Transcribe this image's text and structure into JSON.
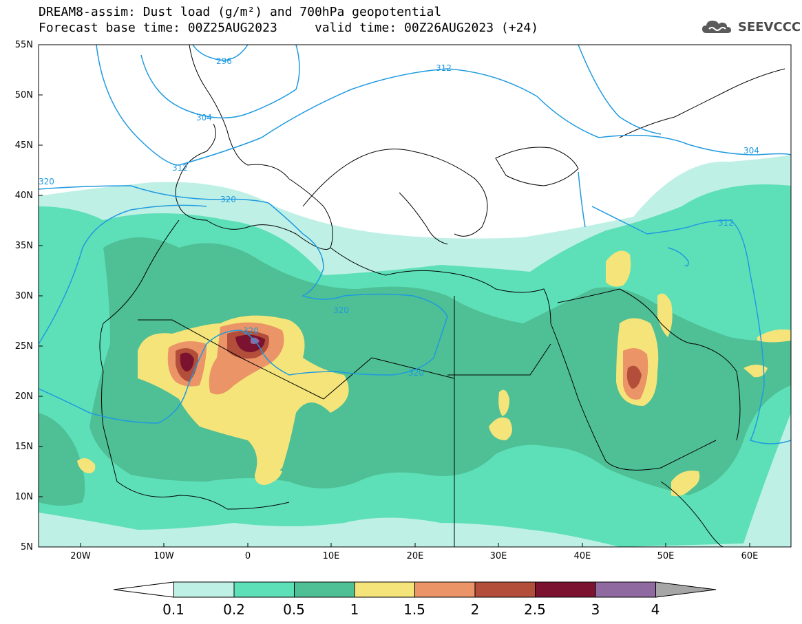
{
  "title": {
    "line1": "DREAM8-assim: Dust load (g/m²) and 700hPa geopotential",
    "line2": "Forecast base time: 00Z25AUG2023     valid time: 00Z26AUG2023 (+24)"
  },
  "logo": {
    "text": "SEEVCCC",
    "icon": "cloud-icon"
  },
  "map": {
    "lat_labels": [
      "55N",
      "50N",
      "45N",
      "40N",
      "35N",
      "30N",
      "25N",
      "20N",
      "15N",
      "10N",
      "5N"
    ],
    "lon_labels": [
      "20W",
      "10W",
      "0",
      "10E",
      "20E",
      "30E",
      "40E",
      "50E",
      "60E"
    ],
    "contour_labels": [
      "296",
      "304",
      "312",
      "320",
      "312",
      "304",
      "312",
      "320",
      "320",
      "320",
      "320"
    ],
    "extent": {
      "lon": [
        -25,
        65
      ],
      "lat": [
        5,
        55
      ]
    }
  },
  "colorbar": {
    "labels": [
      "0.1",
      "0.2",
      "0.5",
      "1",
      "1.5",
      "2",
      "2.5",
      "3",
      "4"
    ],
    "colors": [
      "#ffffff",
      "#bff0e6",
      "#5de0b8",
      "#4fbf95",
      "#f5e47a",
      "#eb9467",
      "#b24e3a",
      "#7a1230",
      "#8f6aa1",
      "#a6a6a6"
    ]
  },
  "palette": {
    "c01": "#bff0e6",
    "c02": "#5de0b8",
    "c05": "#4fbf95",
    "c10": "#f5e47a",
    "c15": "#eb9467",
    "c20": "#b24e3a",
    "c25": "#7a1230",
    "c30": "#8f6aa1",
    "contour": "#1f9ae0"
  }
}
